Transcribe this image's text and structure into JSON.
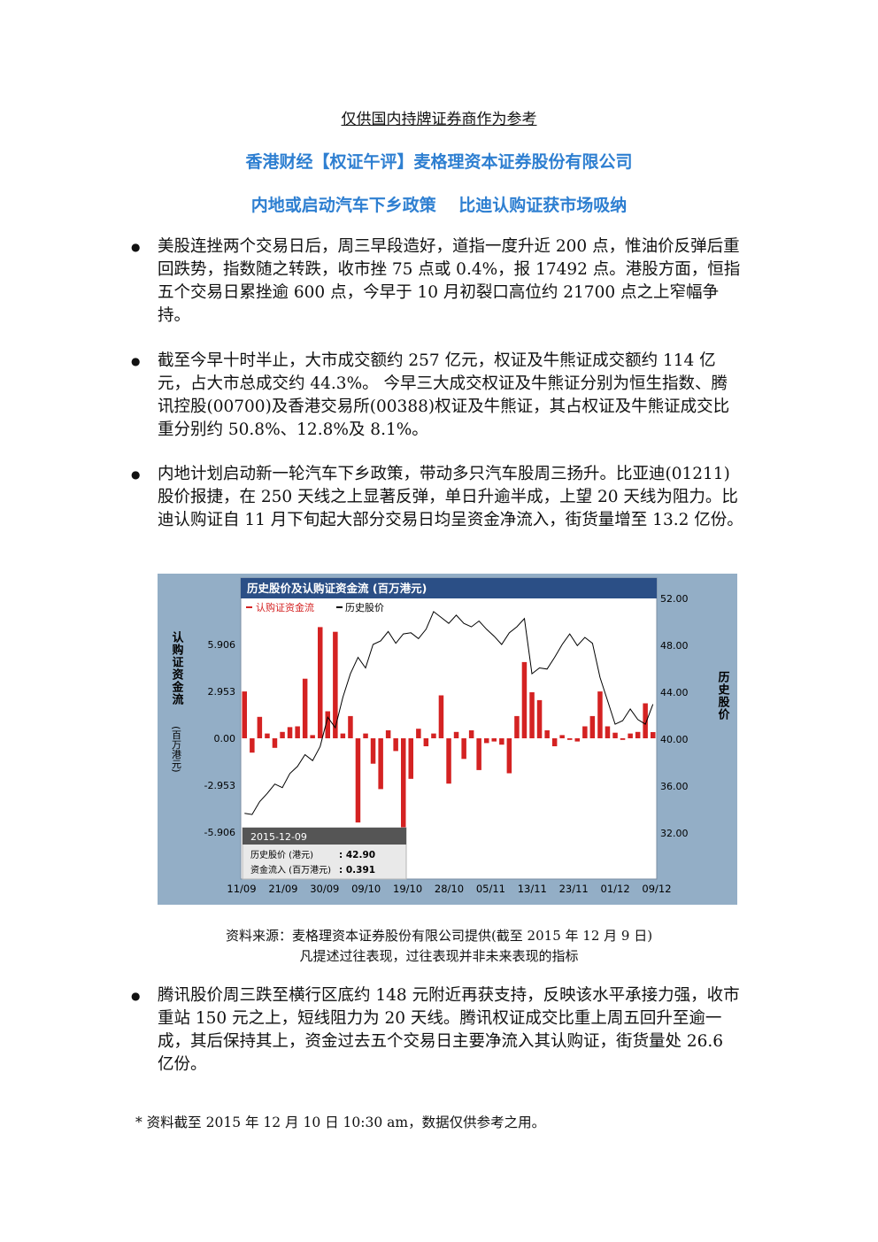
{
  "header": {
    "note": "仅供国内持牌证券商作为参考"
  },
  "titles": {
    "main": "香港财经【权证午评】麦格理资本证券股份有限公司",
    "sub": "内地或启动汽车下乡政策　 比迪认购证获市场吸纳"
  },
  "bullets": [
    "美股连挫两个交易日后，周三早段造好，道指一度升近 200 点，惟油价反弹后重回跌势，指数随之转跌，收市挫 75 点或 0.4%，报 17492 点。港股方面，恒指五个交易日累挫逾 600 点，今早于 10 月初裂口高位约 21700 点之上窄幅争持。",
    "截至今早十时半止，大市成交额约 257 亿元，权证及牛熊证成交额约 114 亿元，占大市总成交约 44.3%。 今早三大成交权证及牛熊证分别为恒生指数、腾讯控股(00700)及香港交易所(00388)权证及牛熊证，其占权证及牛熊证成交比重分别约 50.8%、12.8%及 8.1%。",
    "内地计划启动新一轮汽车下乡政策，带动多只汽车股周三扬升。比亚迪(01211)股价报捷，在 250 天线之上显著反弹，单日升逾半成，上望 20 天线为阻力。比迪认购证自 11 月下旬起大部分交易日均呈资金净流入，街货量增至 13.2 亿份。",
    "腾讯股价周三跌至横行区底约 148 元附近再获支持，反映该水平承接力强，收市重站 150 元之上，短线阻力为 20 天线。腾讯权证成交比重上周五回升至逾一成，其后保持其上，资金过去五个交易日主要净流入其认购证，街货量处 26.6 亿份。"
  ],
  "chart_data": {
    "type": "bar",
    "title": "历史股价及认购证资金流 (百万港元)",
    "legend": [
      "认购证资金流",
      "历史股价"
    ],
    "ylabel_left": "认购证资金流",
    "ylabel_left_unit": "(百万港元)",
    "ylabel_right": "历史股价",
    "left_ticks": [
      "5.906",
      "2.953",
      "0.00",
      "-2.953",
      "-5.906"
    ],
    "right_ticks": [
      "52.00",
      "48.00",
      "44.00",
      "40.00",
      "36.00",
      "32.00"
    ],
    "x_ticks": [
      "11/09",
      "21/09",
      "30/09",
      "09/10",
      "19/10",
      "28/10",
      "05/11",
      "13/11",
      "23/11",
      "01/12",
      "09/12"
    ],
    "ylim_left": [
      -5.906,
      5.906
    ],
    "ylim_right": [
      32,
      52
    ],
    "colors": {
      "bar": "#d42222",
      "line": "#000000",
      "title_bar": "#2b4f86"
    },
    "flows": [
      2.95,
      -0.9,
      1.35,
      0.3,
      -0.6,
      0.4,
      0.7,
      0.75,
      3.75,
      0.2,
      7.0,
      1.7,
      6.7,
      0.3,
      1.4,
      -5.3,
      0.3,
      -1.6,
      -3.2,
      0.5,
      -0.8,
      -5.75,
      -2.55,
      0.6,
      -0.5,
      0.3,
      2.7,
      -2.85,
      0.4,
      -1.3,
      0.5,
      -2.0,
      -0.3,
      -0.2,
      -0.4,
      -2.2,
      1.4,
      4.8,
      2.9,
      2.4,
      0.5,
      -0.5,
      0.2,
      -0.1,
      -0.2,
      0.75,
      1.4,
      2.95,
      0.75,
      0.35,
      -0.1,
      0.3,
      0.4,
      2.2,
      0.39
    ],
    "prices": [
      33.6,
      33.5,
      34.6,
      35.3,
      36.1,
      35.8,
      37.0,
      37.6,
      38.6,
      38.1,
      39.3,
      41.8,
      40.9,
      43.5,
      45.5,
      46.9,
      46.0,
      48.0,
      48.3,
      49.1,
      48.1,
      48.9,
      49.0,
      48.5,
      49.3,
      50.8,
      50.3,
      49.8,
      50.5,
      49.8,
      49.5,
      50.0,
      49.3,
      48.7,
      48.0,
      49.0,
      49.5,
      50.2,
      45.5,
      46.0,
      45.9,
      46.9,
      48.0,
      48.9,
      47.9,
      48.6,
      48.1,
      45.2,
      43.2,
      41.2,
      41.5,
      42.5,
      41.6,
      41.2,
      42.9
    ],
    "tooltip": {
      "date": "2015-12-09",
      "price_label": "历史股价 (港元)",
      "price_value": ": 42.90",
      "flow_label": "资金流入 (百万港元)",
      "flow_value": ": 0.391"
    }
  },
  "captions": {
    "source": "资料来源：麦格理资本证券股份有限公司提供(截至 2015 年 12 月 9 日)",
    "disclaimer": "凡提述过往表现，过往表现并非未来表现的指标"
  },
  "footnote": "*  资料截至 2015 年 12 月 10 日 10:30 am，数据仅供参考之用。"
}
